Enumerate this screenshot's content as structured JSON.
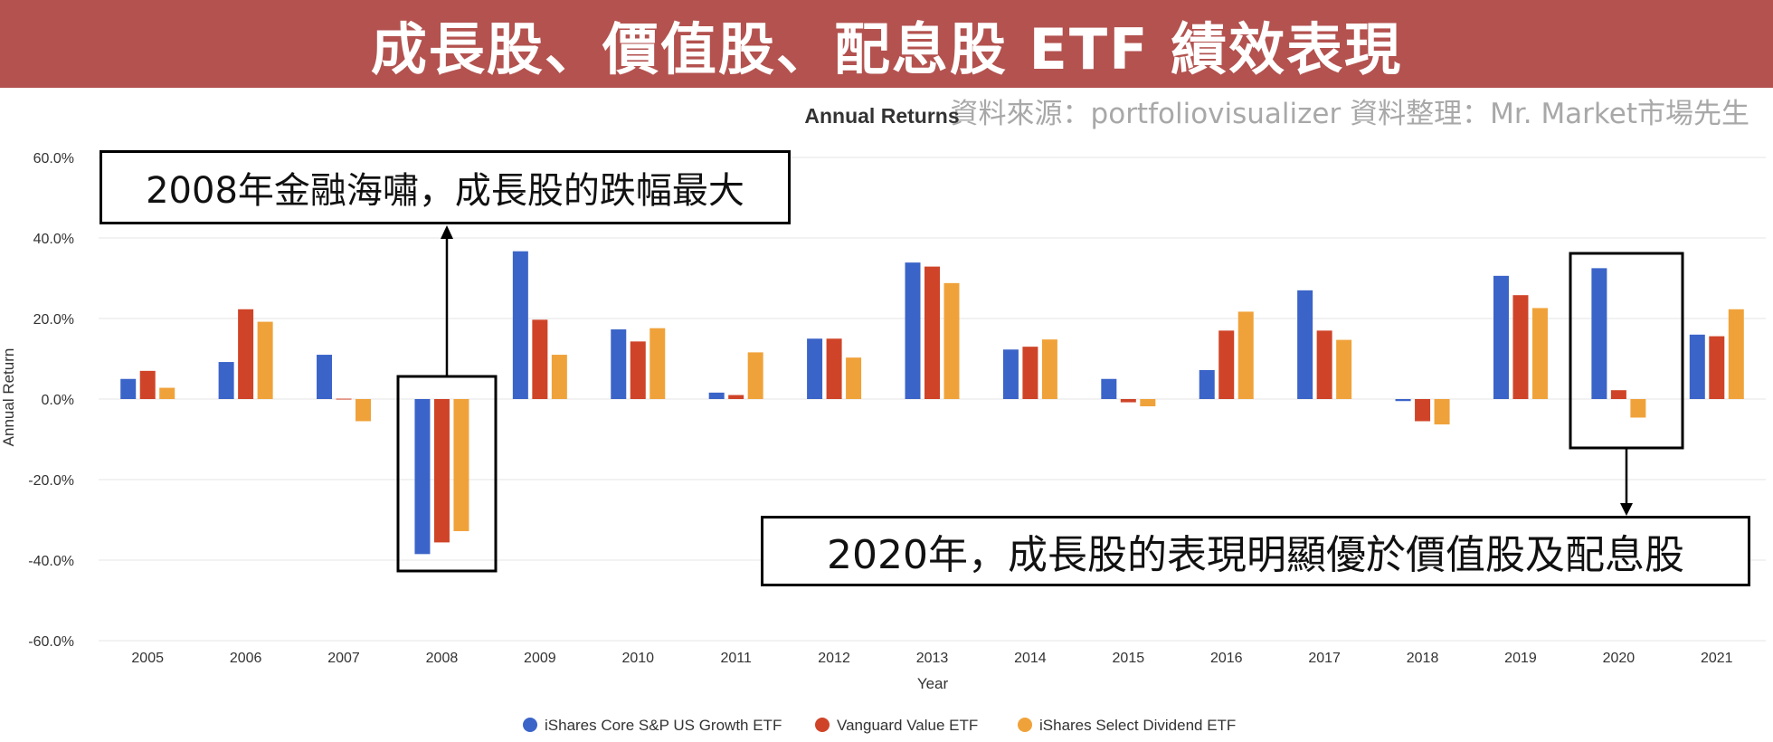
{
  "header": {
    "title": "成長股、價值股、配息股 ETF 績效表現",
    "source": "資料來源：portfoliovisualizer  資料整理：Mr. Market市場先生"
  },
  "annotations": {
    "a2008": "2008年金融海嘯，成長股的跌幅最大",
    "a2020": "2020年，成長股的表現明顯優於價值股及配息股"
  },
  "colors": {
    "growth": "#3b64c8",
    "value": "#cf4428",
    "dividend": "#f0a23a",
    "banner": "#b3524f"
  },
  "chart_data": {
    "type": "bar",
    "title": "Annual Returns",
    "xlabel": "Year",
    "ylabel": "Annual Return",
    "ylim": [
      -60,
      60
    ],
    "yticks": [
      "60.0%",
      "40.0%",
      "20.0%",
      "0.0%",
      "-20.0%",
      "-40.0%",
      "-60.0%"
    ],
    "grid": true,
    "legend_position": "bottom",
    "categories": [
      "2005",
      "2006",
      "2007",
      "2008",
      "2009",
      "2010",
      "2011",
      "2012",
      "2013",
      "2014",
      "2015",
      "2016",
      "2017",
      "2018",
      "2019",
      "2020",
      "2021"
    ],
    "series": [
      {
        "name": "iShares Core S&P US Growth ETF",
        "values": [
          5.0,
          9.2,
          11.0,
          -38.5,
          36.7,
          17.3,
          1.6,
          15.0,
          33.9,
          12.3,
          5.0,
          7.2,
          27.0,
          -0.5,
          30.6,
          32.5,
          16.0
        ]
      },
      {
        "name": "Vanguard Value ETF",
        "values": [
          7.0,
          22.3,
          0.1,
          -35.6,
          19.7,
          14.3,
          1.0,
          15.0,
          32.9,
          13.0,
          -0.8,
          17.0,
          17.0,
          -5.5,
          25.8,
          2.2,
          15.6
        ]
      },
      {
        "name": "iShares Select Dividend ETF",
        "values": [
          2.8,
          19.2,
          -5.5,
          -32.8,
          11.0,
          17.6,
          11.6,
          10.3,
          28.8,
          14.8,
          -1.8,
          21.7,
          14.7,
          -6.3,
          22.6,
          -4.6,
          22.3
        ]
      }
    ]
  }
}
